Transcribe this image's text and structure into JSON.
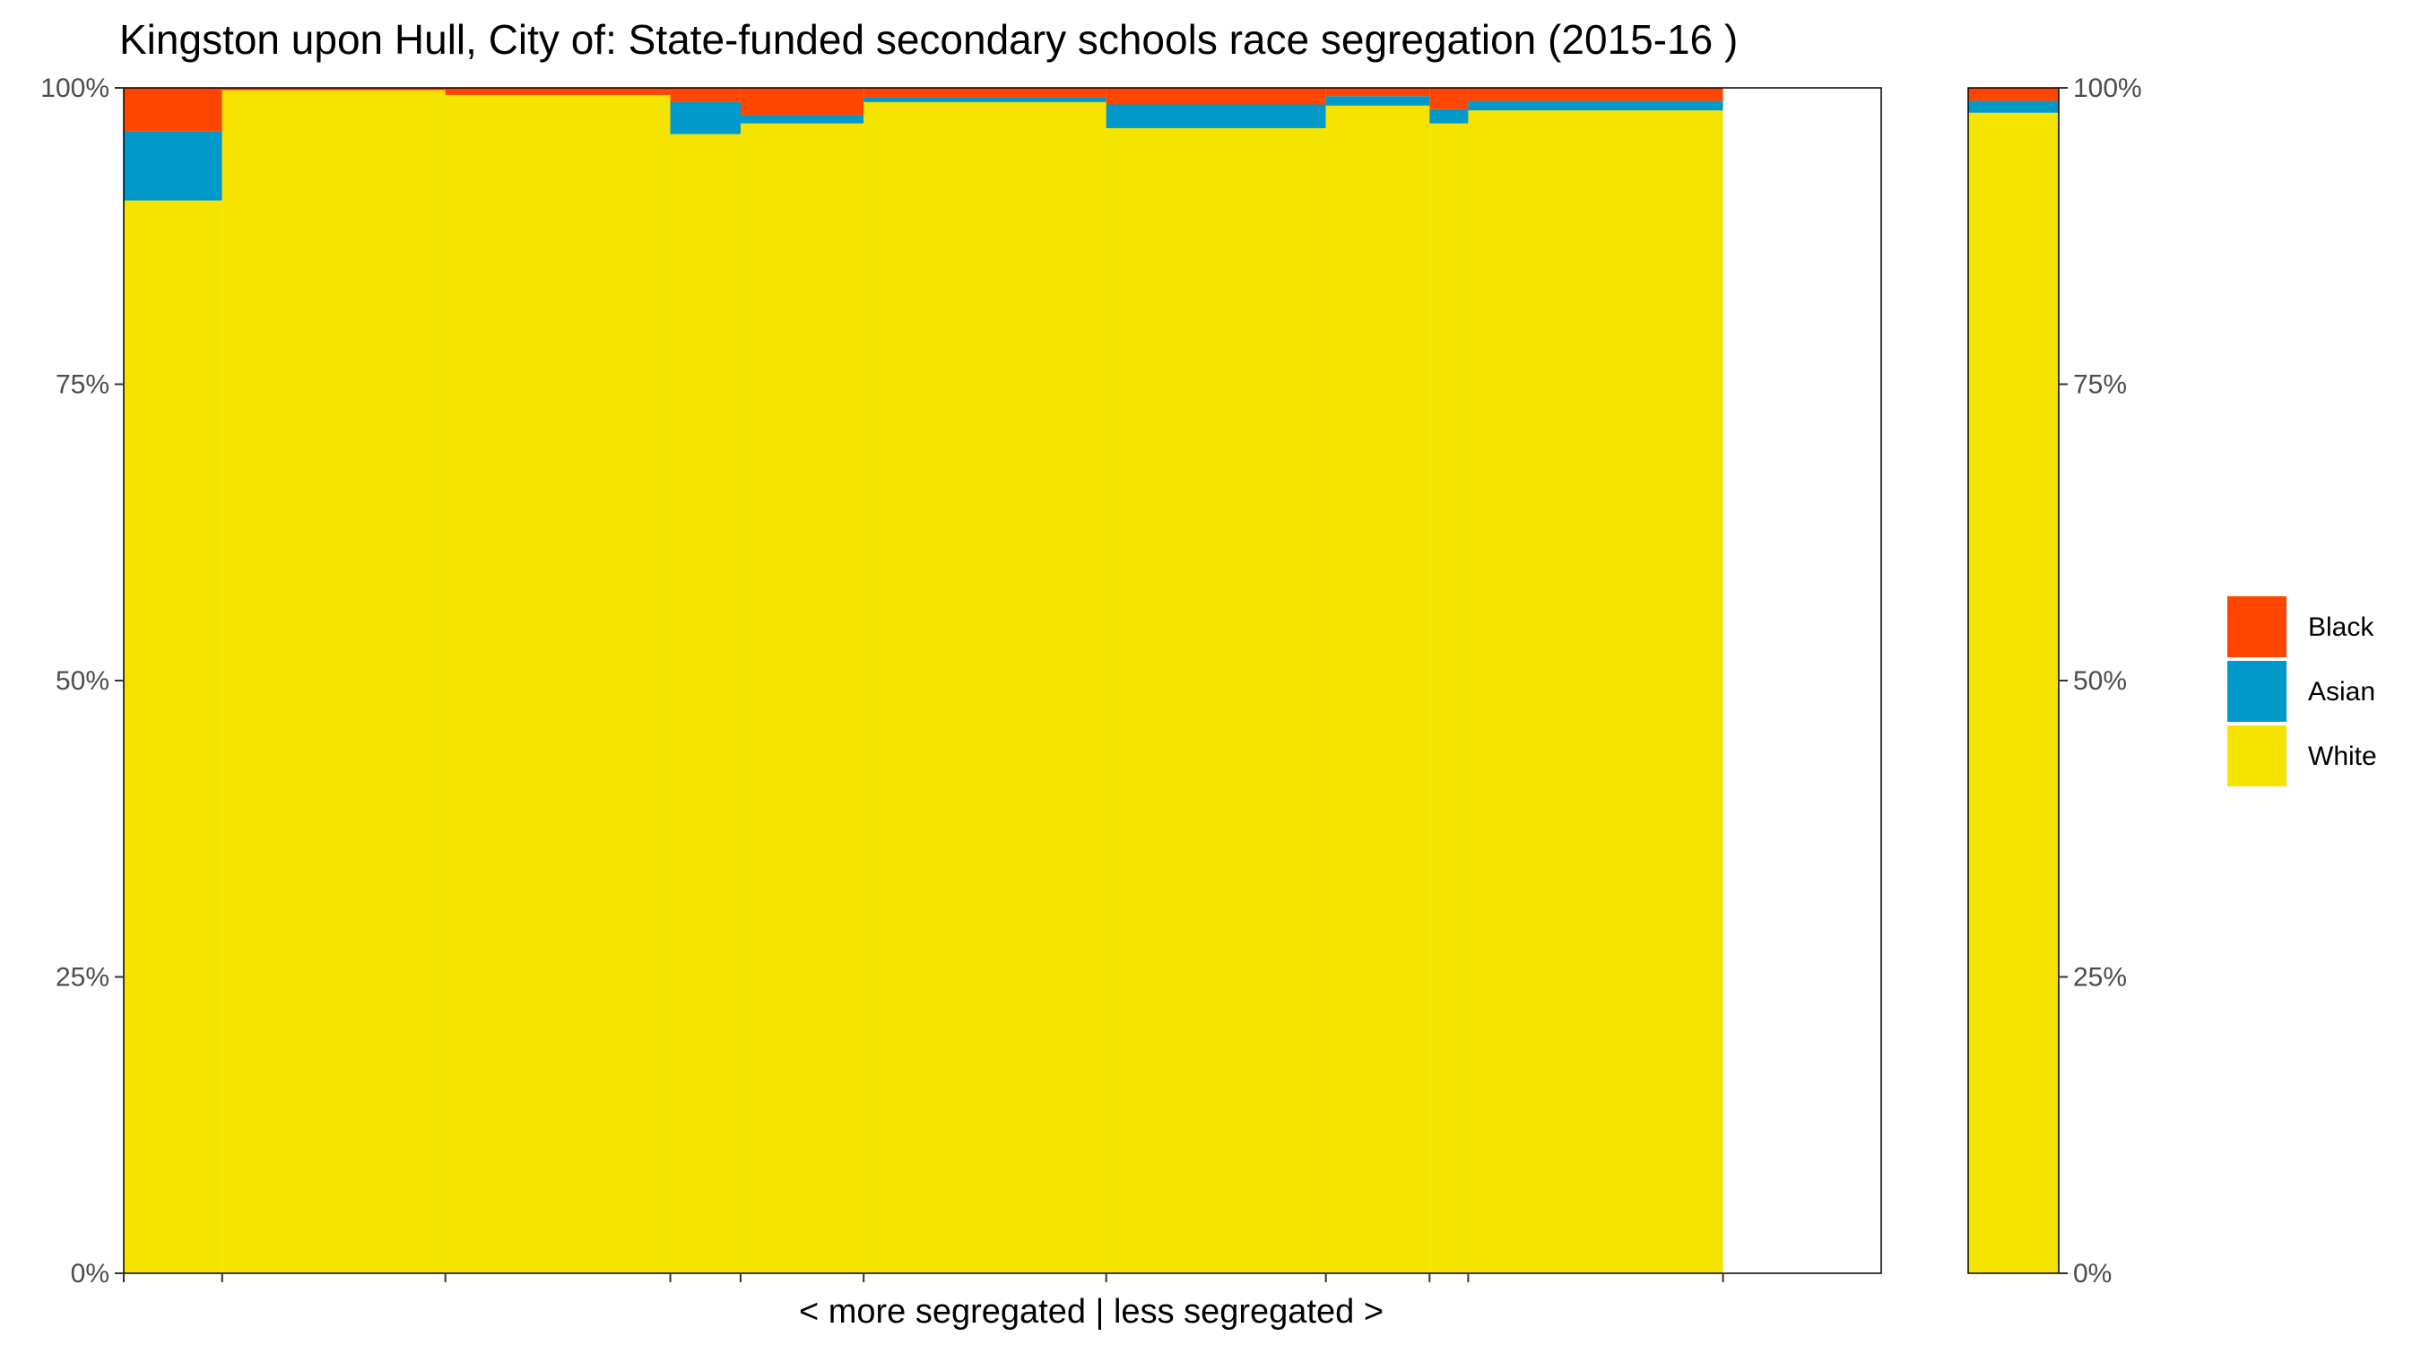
{
  "chart_data": {
    "type": "bar",
    "subtype": "stacked-100-percent-variable-width",
    "title": "Kingston upon Hull, City of: State-funded secondary schools race segregation (2015-16 )",
    "xlabel": "< more segregated | less segregated >",
    "ylabel": "",
    "ylim": [
      0,
      100
    ],
    "y_ticks": [
      "0%",
      "25%",
      "50%",
      "75%",
      "100%"
    ],
    "y_tick_values": [
      0,
      25,
      50,
      75,
      100
    ],
    "y_axis_mirrored_right": true,
    "x_domain": [
      0,
      100
    ],
    "x_tick_values": [
      0,
      5.6,
      18.3,
      31.1,
      35.1,
      42.1,
      55.9,
      68.4,
      74.3,
      76.5,
      91.0
    ],
    "grid": false,
    "legend_position": "right",
    "legend_order": [
      "Black",
      "Asian",
      "White"
    ],
    "colors": {
      "Black": "#fe4600",
      "Asian": "#0199c9",
      "White": "#f5e400",
      "outline": "#000000",
      "axis_text": "#4d4d4d"
    },
    "series": [
      {
        "name": "White",
        "color": "#f5e400"
      },
      {
        "name": "Asian",
        "color": "#0199c9"
      },
      {
        "name": "Black",
        "color": "#fe4600"
      }
    ],
    "schools": [
      {
        "x_start": 0.0,
        "x_end": 5.6,
        "White": 90.5,
        "Asian": 5.8,
        "Black": 3.7
      },
      {
        "x_start": 5.6,
        "x_end": 18.3,
        "White": 99.8,
        "Asian": 0.0,
        "Black": 0.2
      },
      {
        "x_start": 18.3,
        "x_end": 31.1,
        "White": 99.4,
        "Asian": 0.0,
        "Black": 0.6
      },
      {
        "x_start": 31.1,
        "x_end": 35.1,
        "White": 96.1,
        "Asian": 2.7,
        "Black": 1.2
      },
      {
        "x_start": 35.1,
        "x_end": 42.1,
        "White": 97.0,
        "Asian": 0.7,
        "Black": 2.3
      },
      {
        "x_start": 42.1,
        "x_end": 55.9,
        "White": 98.8,
        "Asian": 0.4,
        "Black": 0.8
      },
      {
        "x_start": 55.9,
        "x_end": 68.4,
        "White": 96.6,
        "Asian": 2.0,
        "Black": 1.4
      },
      {
        "x_start": 68.4,
        "x_end": 74.3,
        "White": 98.5,
        "Asian": 0.8,
        "Black": 0.7
      },
      {
        "x_start": 74.3,
        "x_end": 76.5,
        "White": 97.0,
        "Asian": 1.2,
        "Black": 1.8
      },
      {
        "x_start": 76.5,
        "x_end": 91.0,
        "White": 98.1,
        "Asian": 0.8,
        "Black": 1.1
      }
    ],
    "total_bar": {
      "White": 97.9,
      "Asian": 1.0,
      "Black": 1.1
    }
  }
}
